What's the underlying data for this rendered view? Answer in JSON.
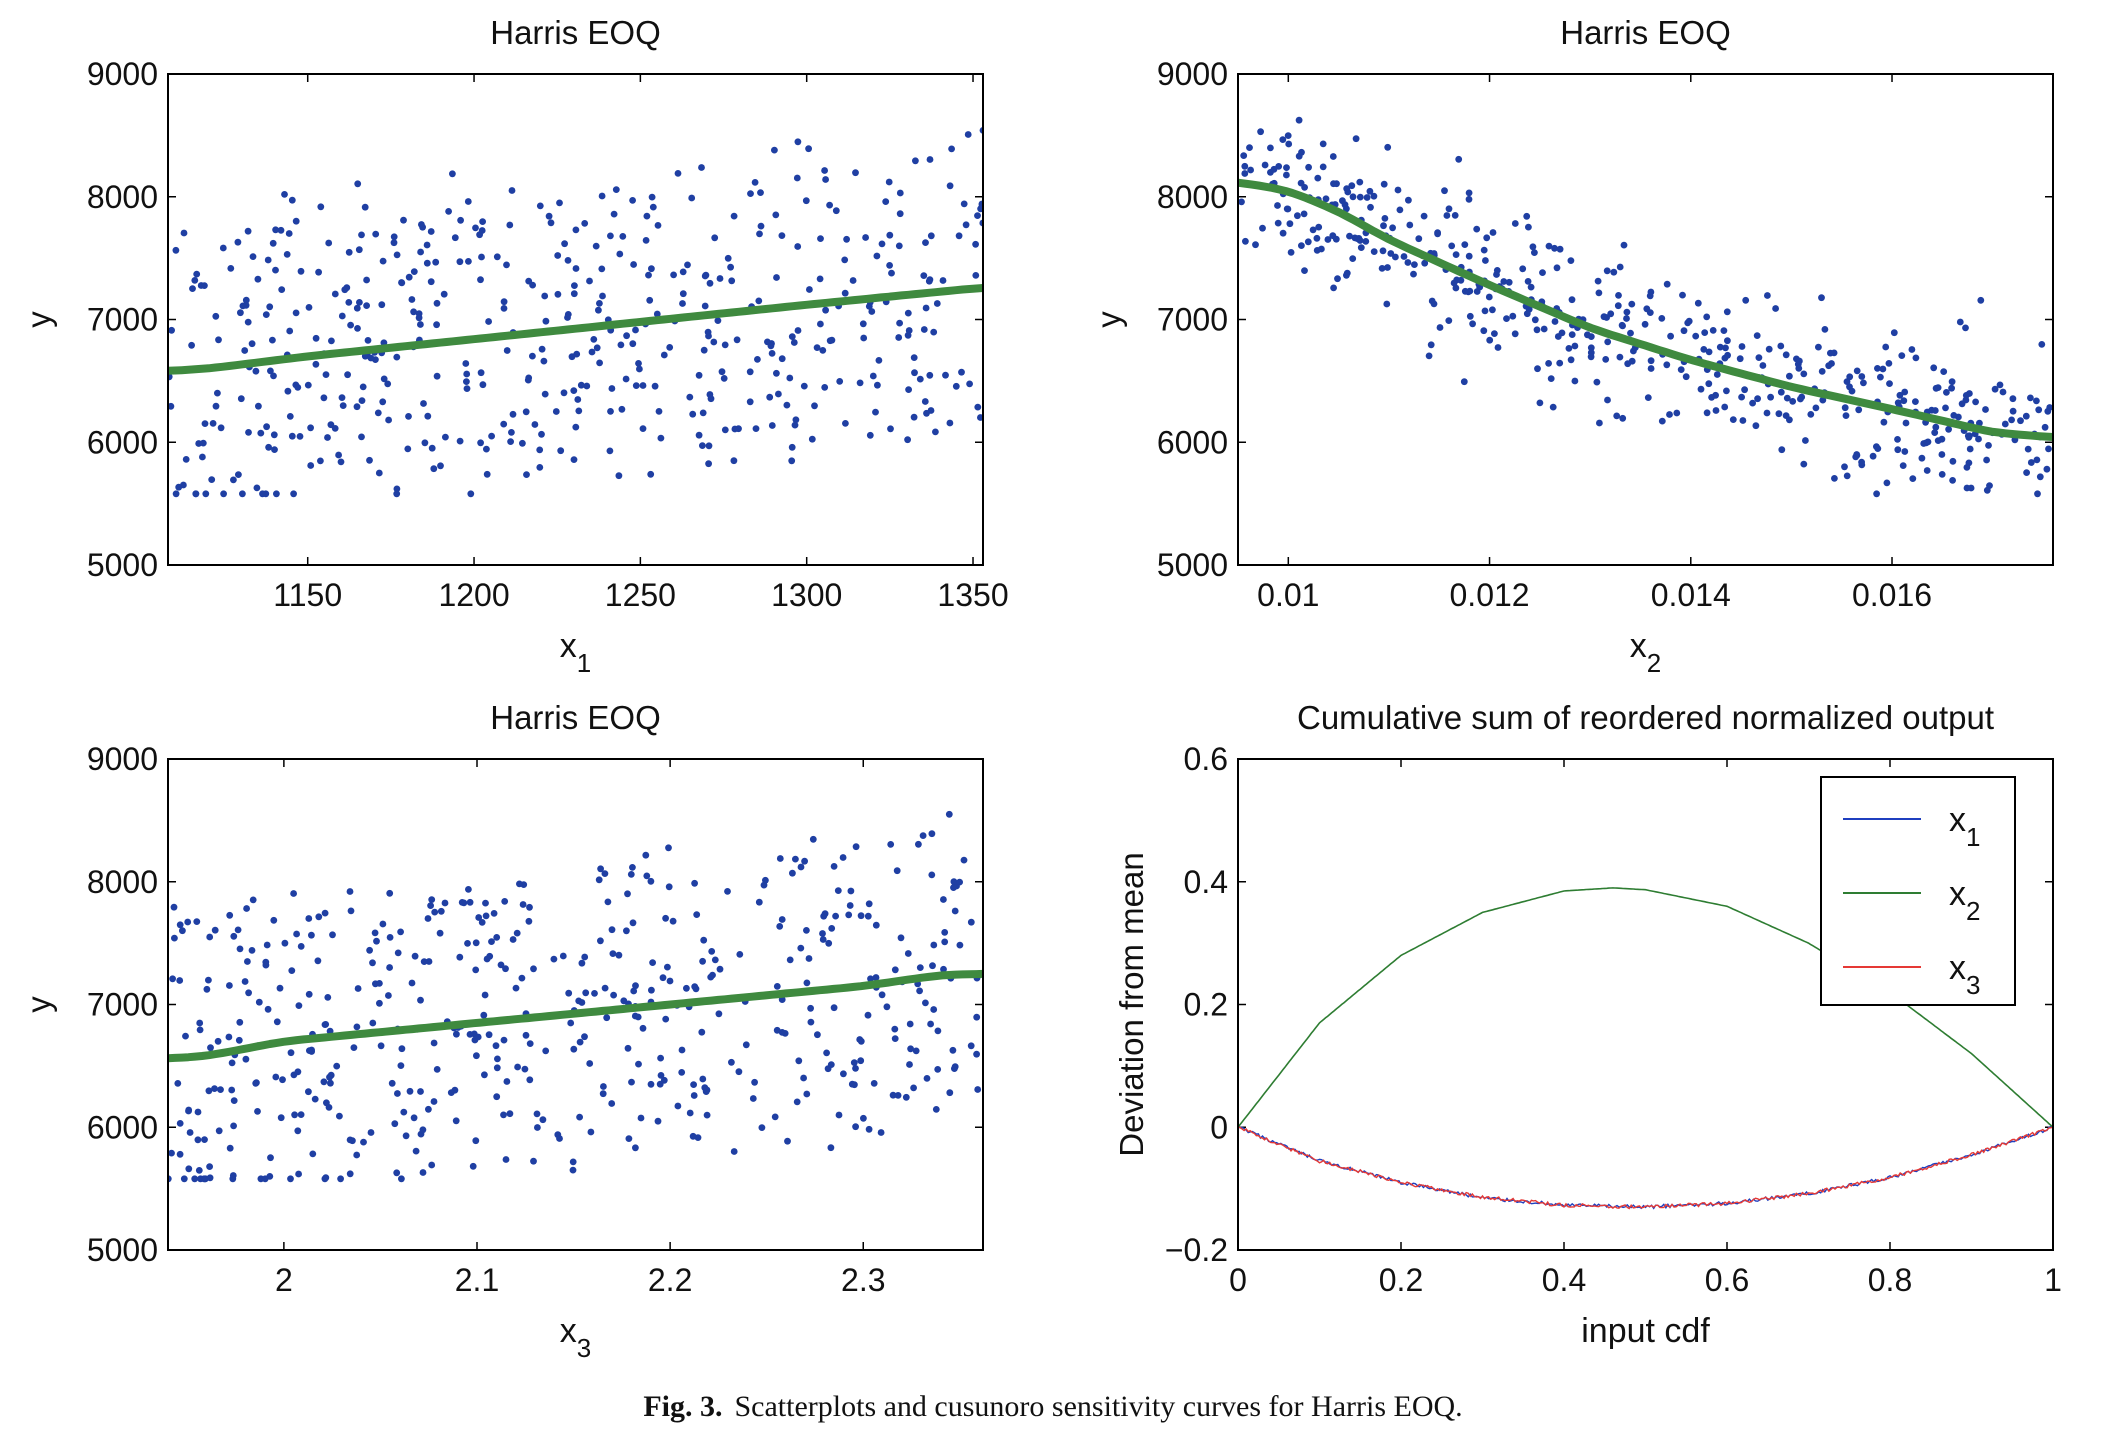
{
  "caption": {
    "label": "Fig. 3.",
    "text": "Scatterplots and cusunoro sensitivity curves for Harris EOQ."
  },
  "colors": {
    "scatter_points": "#1f3fa3",
    "smooth_curve": "#3f8a3f",
    "x1_line": "#1f3fbf",
    "x2_line": "#2e7d32",
    "x3_line": "#e53935"
  },
  "chart_data": [
    {
      "type": "scatter",
      "title": "Harris EOQ",
      "xlabel": "x",
      "xlabel_sub": "1",
      "ylabel": "y",
      "xlim": [
        1108,
        1353
      ],
      "ylim": [
        5000,
        9000
      ],
      "xticks": [
        1150,
        1200,
        1250,
        1300,
        1350
      ],
      "xtick_labels": [
        "1150",
        "1200",
        "1250",
        "1300",
        "1350"
      ],
      "yticks": [
        5000,
        6000,
        7000,
        8000,
        9000
      ],
      "ytick_labels": [
        "5000",
        "6000",
        "7000",
        "8000",
        "9000"
      ],
      "points": {
        "n": 500,
        "description": "uniform x over range; y spread roughly 5600–8800 with weak upward trend"
      },
      "smooth_fit": {
        "x": [
          1108,
          1120,
          1150,
          1200,
          1250,
          1300,
          1330,
          1353
        ],
        "y": [
          6580,
          6600,
          6700,
          6840,
          6980,
          7120,
          7200,
          7260
        ]
      }
    },
    {
      "type": "scatter",
      "title": "Harris EOQ",
      "xlabel": "x",
      "xlabel_sub": "2",
      "ylabel": "y",
      "xlim": [
        0.0095,
        0.0176
      ],
      "ylim": [
        5000,
        9000
      ],
      "xticks": [
        0.01,
        0.012,
        0.014,
        0.016
      ],
      "xtick_labels": [
        "0.01",
        "0.012",
        "0.014",
        "0.016"
      ],
      "yticks": [
        5000,
        6000,
        7000,
        8000,
        9000
      ],
      "ytick_labels": [
        "5000",
        "6000",
        "7000",
        "8000",
        "9000"
      ],
      "points": {
        "n": 500,
        "description": "strong decreasing relationship, y from about 8800 down to 5600"
      },
      "smooth_fit": {
        "x": [
          0.0095,
          0.01,
          0.0105,
          0.011,
          0.012,
          0.013,
          0.014,
          0.015,
          0.016,
          0.017,
          0.0176
        ],
        "y": [
          8120,
          8050,
          7880,
          7650,
          7280,
          6930,
          6670,
          6450,
          6270,
          6080,
          6040
        ]
      }
    },
    {
      "type": "scatter",
      "title": "Harris EOQ",
      "xlabel": "x",
      "xlabel_sub": "3",
      "ylabel": "y",
      "xlim": [
        1.94,
        2.362
      ],
      "ylim": [
        5000,
        9000
      ],
      "xticks": [
        2,
        2.1,
        2.2,
        2.3
      ],
      "xtick_labels": [
        "2",
        "2.1",
        "2.2",
        "2.3"
      ],
      "yticks": [
        5000,
        6000,
        7000,
        8000,
        9000
      ],
      "ytick_labels": [
        "5000",
        "6000",
        "7000",
        "8000",
        "9000"
      ],
      "points": {
        "n": 500,
        "description": "uniform x over range; y spread roughly 5600–8800 with weak upward trend"
      },
      "smooth_fit": {
        "x": [
          1.94,
          1.96,
          2.0,
          2.1,
          2.2,
          2.3,
          2.34,
          2.362
        ],
        "y": [
          6560,
          6580,
          6700,
          6850,
          7000,
          7150,
          7240,
          7250
        ]
      }
    },
    {
      "type": "line",
      "title": "Cumulative sum of reordered normalized output",
      "xlabel": "input cdf",
      "ylabel": "Deviation from mean",
      "xlim": [
        0,
        1
      ],
      "ylim": [
        -0.2,
        0.6
      ],
      "xticks": [
        0,
        0.2,
        0.4,
        0.6,
        0.8,
        1
      ],
      "xtick_labels": [
        "0",
        "0.2",
        "0.4",
        "0.6",
        "0.8",
        "1"
      ],
      "yticks": [
        -0.2,
        0,
        0.2,
        0.4,
        0.6
      ],
      "ytick_labels": [
        "−0.2",
        "0",
        "0.2",
        "0.4",
        "0.6"
      ],
      "legend_placement": "top-right",
      "series": [
        {
          "name": "x",
          "sub": "1",
          "x": [
            0,
            0.1,
            0.2,
            0.3,
            0.4,
            0.5,
            0.6,
            0.7,
            0.8,
            0.9,
            1
          ],
          "values": [
            0,
            -0.055,
            -0.09,
            -0.115,
            -0.127,
            -0.13,
            -0.124,
            -0.108,
            -0.082,
            -0.045,
            0
          ]
        },
        {
          "name": "x",
          "sub": "2",
          "x": [
            0,
            0.1,
            0.2,
            0.3,
            0.4,
            0.46,
            0.5,
            0.6,
            0.7,
            0.8,
            0.9,
            1
          ],
          "values": [
            0,
            0.17,
            0.28,
            0.35,
            0.385,
            0.39,
            0.387,
            0.36,
            0.3,
            0.22,
            0.12,
            0
          ]
        },
        {
          "name": "x",
          "sub": "3",
          "x": [
            0,
            0.1,
            0.2,
            0.3,
            0.4,
            0.5,
            0.6,
            0.7,
            0.8,
            0.9,
            1
          ],
          "values": [
            0,
            -0.055,
            -0.09,
            -0.114,
            -0.127,
            -0.13,
            -0.124,
            -0.108,
            -0.082,
            -0.045,
            0
          ]
        }
      ]
    }
  ]
}
